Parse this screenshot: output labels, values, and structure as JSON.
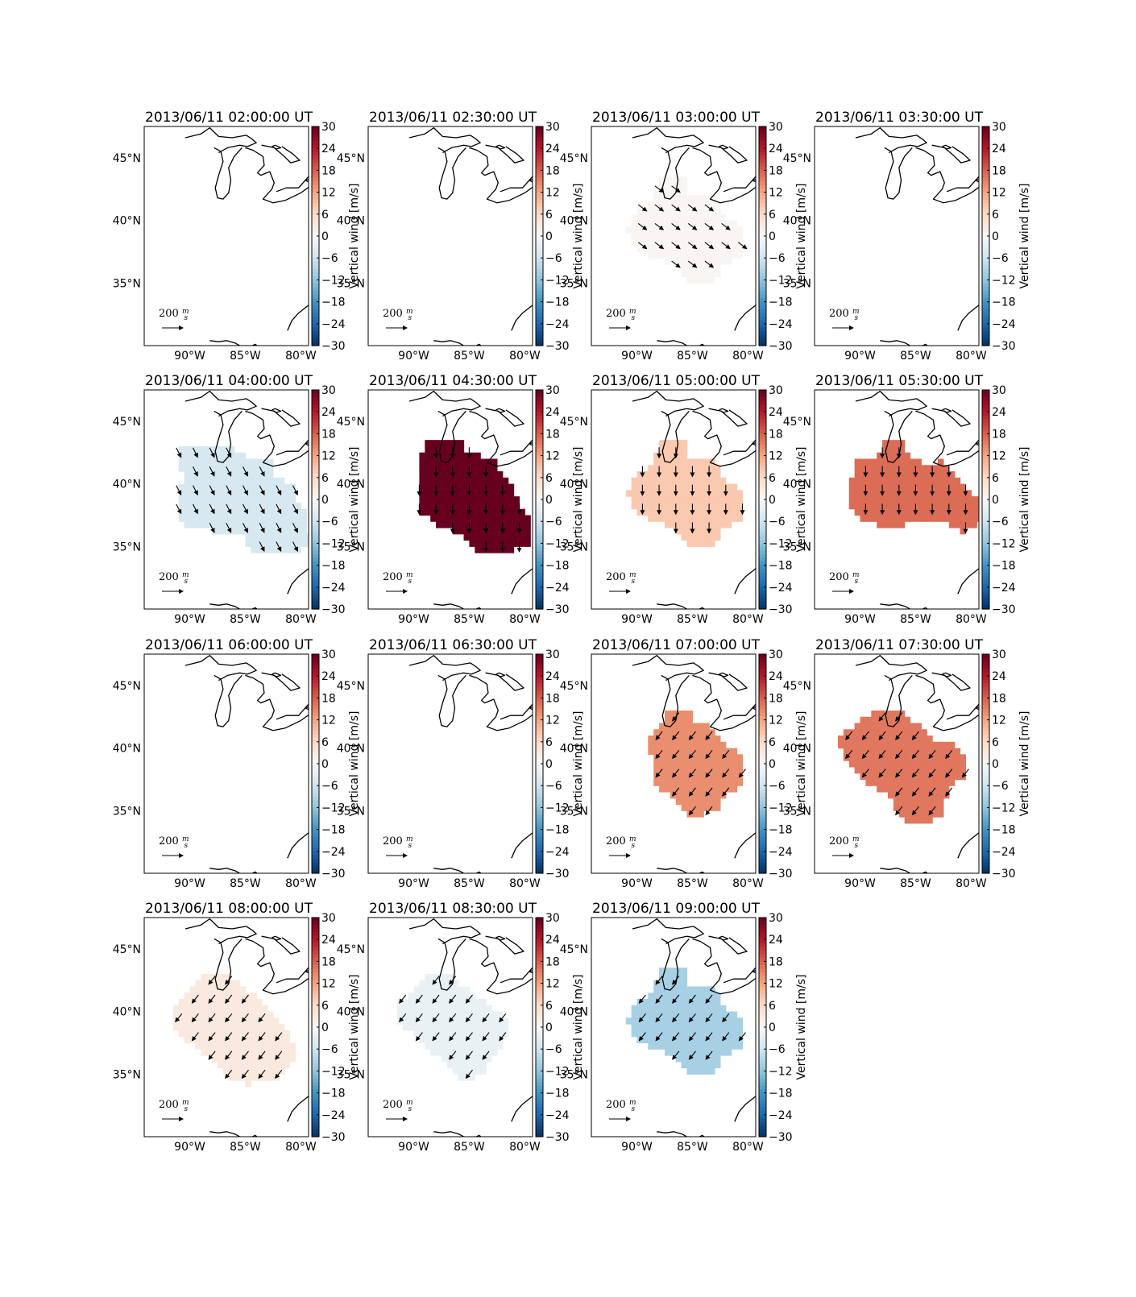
{
  "figure": {
    "colorbar_label": "Vertical wind [m/s]",
    "colorbar_ticks": [
      "30",
      "24",
      "18",
      "12",
      "6",
      "0",
      "−6",
      "−12",
      "−18",
      "−24",
      "−30"
    ],
    "lat_labels": [
      "45°N",
      "40°N",
      "35°N"
    ],
    "lon_labels": [
      "90°W",
      "85°W",
      "80°W"
    ],
    "scale_value": "200",
    "scale_unit_num": "m",
    "scale_unit_den": "s"
  },
  "colormap": {
    "name": "RdBu_r",
    "min": -30,
    "max": 30,
    "stops": [
      "#053061",
      "#2166ac",
      "#4393c3",
      "#92c5de",
      "#d1e5f0",
      "#f7f7f7",
      "#fddbc7",
      "#f4a582",
      "#d6604d",
      "#b2182b",
      "#67001f"
    ]
  },
  "panels": [
    {
      "title": "2013/06/11 02:00:00 UT",
      "vertical_wind": null,
      "arrow_direction": null,
      "region": "none"
    },
    {
      "title": "2013/06/11 02:30:00 UT",
      "vertical_wind": null,
      "arrow_direction": null,
      "region": "none"
    },
    {
      "title": "2013/06/11 03:00:00 UT",
      "vertical_wind": 0.5,
      "arrow_direction": "SE",
      "region": "C"
    },
    {
      "title": "2013/06/11 03:30:00 UT",
      "vertical_wind": null,
      "arrow_direction": null,
      "region": "none"
    },
    {
      "title": "2013/06/11 04:00:00 UT",
      "vertical_wind": -5,
      "arrow_direction": "SSE",
      "region": "A"
    },
    {
      "title": "2013/06/11 04:30:00 UT",
      "vertical_wind": 30,
      "arrow_direction": "S",
      "region": "B"
    },
    {
      "title": "2013/06/11 05:00:00 UT",
      "vertical_wind": 8,
      "arrow_direction": "S",
      "region": "C"
    },
    {
      "title": "2013/06/11 05:30:00 UT",
      "vertical_wind": 17,
      "arrow_direction": "S",
      "region": "D"
    },
    {
      "title": "2013/06/11 06:00:00 UT",
      "vertical_wind": null,
      "arrow_direction": null,
      "region": "none"
    },
    {
      "title": "2013/06/11 06:30:00 UT",
      "vertical_wind": null,
      "arrow_direction": null,
      "region": "none"
    },
    {
      "title": "2013/06/11 07:00:00 UT",
      "vertical_wind": 14,
      "arrow_direction": "SW",
      "region": "E"
    },
    {
      "title": "2013/06/11 07:30:00 UT",
      "vertical_wind": 16,
      "arrow_direction": "SW",
      "region": "F"
    },
    {
      "title": "2013/06/11 08:00:00 UT",
      "vertical_wind": 3,
      "arrow_direction": "SW",
      "region": "G"
    },
    {
      "title": "2013/06/11 08:30:00 UT",
      "vertical_wind": -2,
      "arrow_direction": "SW",
      "region": "H"
    },
    {
      "title": "2013/06/11 09:00:00 UT",
      "vertical_wind": -10,
      "arrow_direction": "SW",
      "region": "C"
    }
  ]
}
